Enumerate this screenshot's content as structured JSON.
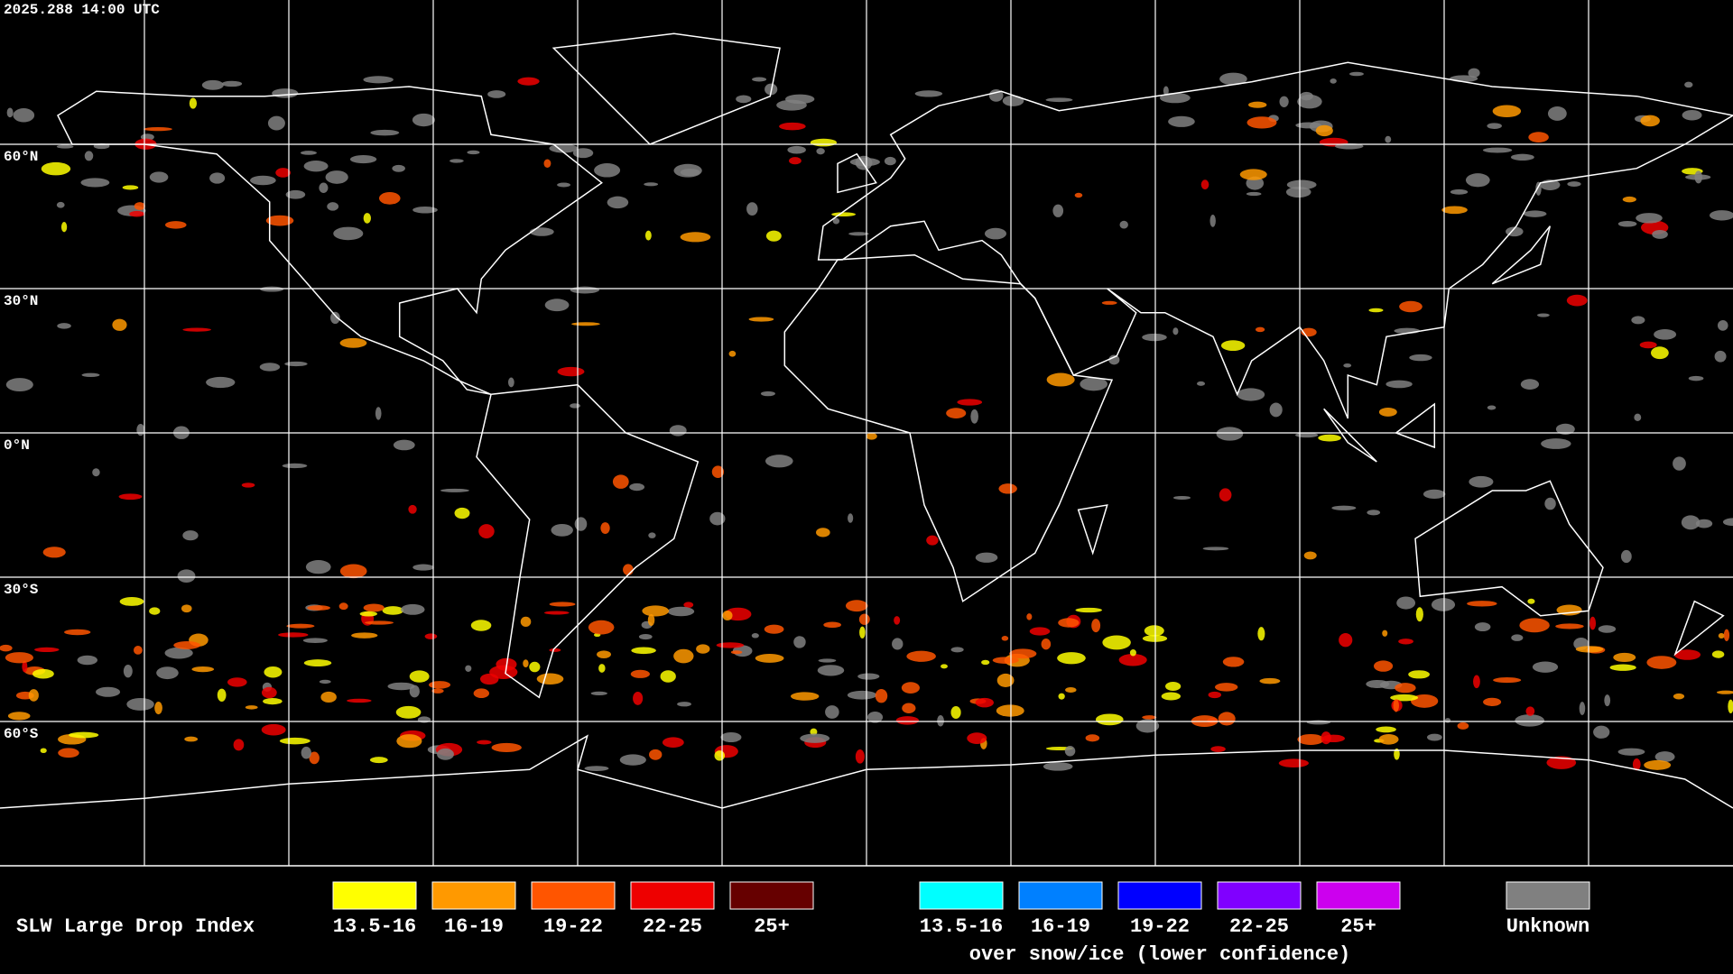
{
  "header": {
    "timestamp": "2025.288 14:00 UTC"
  },
  "map": {
    "latitude_labels": [
      "60°N",
      "30°N",
      "0°N",
      "30°S",
      "60°S"
    ]
  },
  "legend": {
    "title": "SLW Large Drop Index",
    "items": [
      {
        "label": "13.5-16",
        "color": "#ffff00"
      },
      {
        "label": "16-19",
        "color": "#ff9900"
      },
      {
        "label": "19-22",
        "color": "#ff5500"
      },
      {
        "label": "22-25",
        "color": "#ee0000"
      },
      {
        "label": "25+",
        "color": "#660000"
      }
    ],
    "snow_items": [
      {
        "label": "13.5-16",
        "color": "#00ffff"
      },
      {
        "label": "16-19",
        "color": "#0080ff"
      },
      {
        "label": "19-22",
        "color": "#0000ff"
      },
      {
        "label": "22-25",
        "color": "#8000ff"
      },
      {
        "label": "25+",
        "color": "#cc00ee"
      }
    ],
    "snow_caption": "over snow/ice (lower confidence)",
    "unknown": {
      "label": "Unknown",
      "color": "#808080"
    }
  }
}
